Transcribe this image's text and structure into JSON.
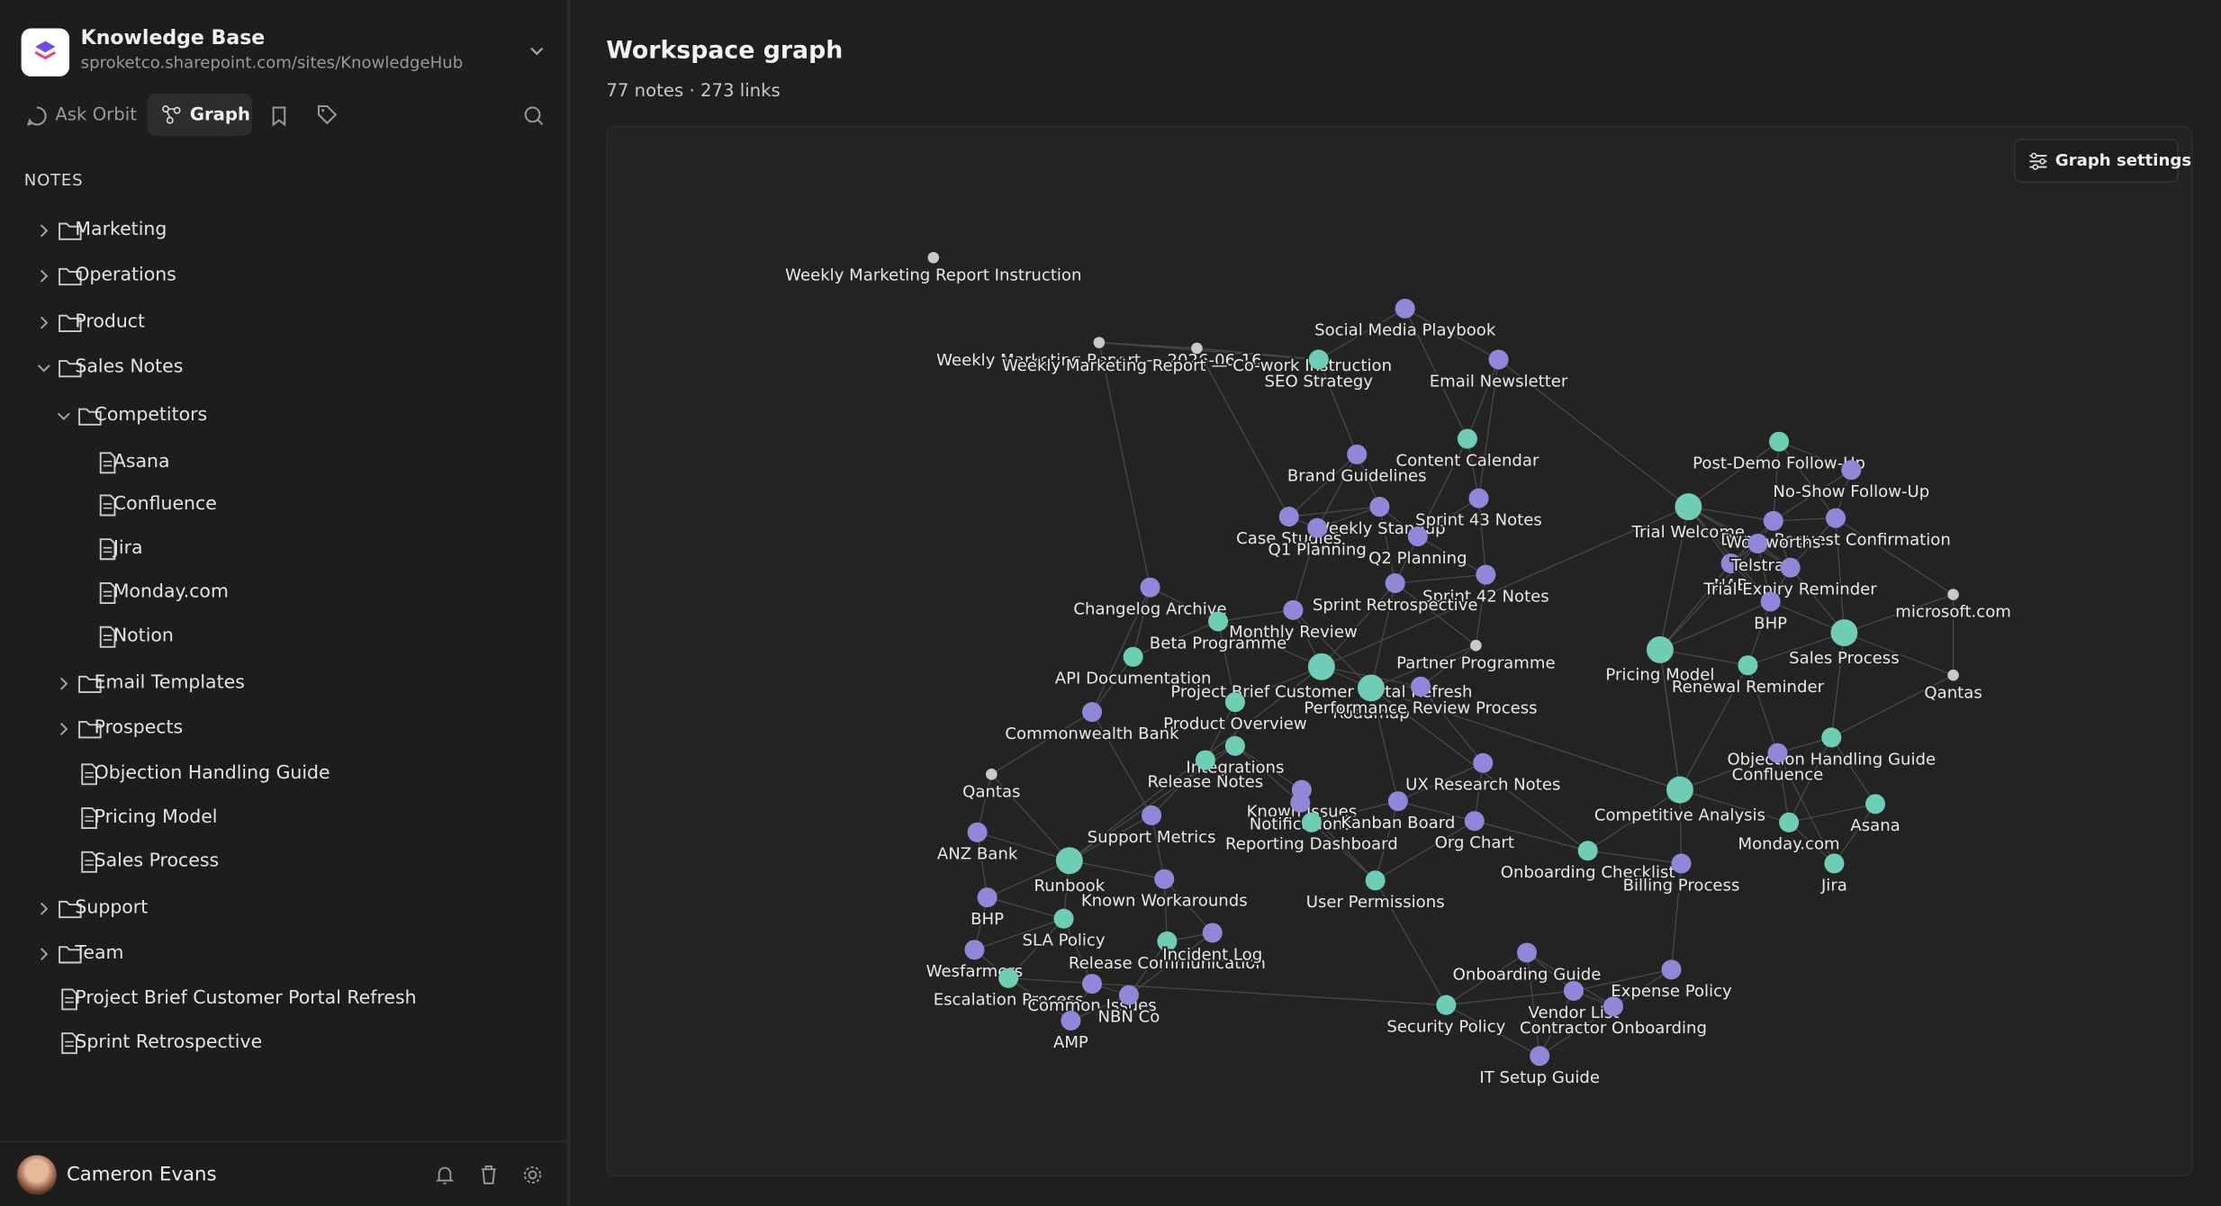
{
  "workspace": {
    "name": "Knowledge Base",
    "url": "sproketco.sharepoint.com/sites/KnowledgeHub"
  },
  "tabs": [
    "Ask Orbit",
    "Graph"
  ],
  "notes_heading": "NOTES",
  "tree": [
    {
      "label": "Marketing",
      "level": 0,
      "kind": "folder",
      "open": false
    },
    {
      "label": "Operations",
      "level": 0,
      "kind": "folder",
      "open": false
    },
    {
      "label": "Product",
      "level": 0,
      "kind": "folder",
      "open": false
    },
    {
      "label": "Sales Notes",
      "level": 0,
      "kind": "folder",
      "open": true
    },
    {
      "label": "Competitors",
      "level": 1,
      "kind": "folder",
      "open": true
    },
    {
      "label": "Asana",
      "level": 2,
      "kind": "file"
    },
    {
      "label": "Confluence",
      "level": 2,
      "kind": "file"
    },
    {
      "label": "Jira",
      "level": 2,
      "kind": "file"
    },
    {
      "label": "Monday.com",
      "level": 2,
      "kind": "file"
    },
    {
      "label": "Notion",
      "level": 2,
      "kind": "file"
    },
    {
      "label": "Email Templates",
      "level": 1,
      "kind": "folder",
      "open": false
    },
    {
      "label": "Prospects",
      "level": 1,
      "kind": "folder",
      "open": false
    },
    {
      "label": "Objection Handling Guide",
      "level": 1,
      "kind": "file"
    },
    {
      "label": "Pricing Model",
      "level": 1,
      "kind": "file"
    },
    {
      "label": "Sales Process",
      "level": 1,
      "kind": "file"
    },
    {
      "label": "Support",
      "level": 0,
      "kind": "folder",
      "open": false
    },
    {
      "label": "Team",
      "level": 0,
      "kind": "folder",
      "open": false
    },
    {
      "label": "Project Brief Customer Portal Refresh",
      "level": 0,
      "kind": "file"
    },
    {
      "label": "Sprint Retrospective",
      "level": 0,
      "kind": "file"
    }
  ],
  "user": "Cameron Evans",
  "header": {
    "title": "Workspace graph",
    "stats": "77 notes · 273 links"
  },
  "graph_settings": "Graph settings",
  "nodes": [
    "Weekly Marketing Report Instruction",
    "Weekly Marketing Report — 2026-06-16",
    "Weekly Marketing Report — Co-work Instruction",
    "Social Media Playbook",
    "SEO Strategy",
    "Email Newsletter",
    "Content Calendar",
    "Brand Guidelines",
    "Weekly Standup",
    "Sprint 43 Notes",
    "Case Studies",
    "Q1 Planning",
    "Q2 Planning",
    "Sprint 42 Notes",
    "Sprint Retrospective",
    "Changelog Archive",
    "Monthly Review",
    "Beta Programme",
    "Partner Programme",
    "API Documentation",
    "Project Brief Customer Portal Refresh",
    "Roadmap",
    "Product Overview",
    "Performance Review Process",
    "Commonwealth Bank",
    "Integrations",
    "Release Notes",
    "Known Issues",
    "UX Research Notes",
    "Notifications",
    "Kanban Board",
    "Org Chart",
    "Reporting Dashboard",
    "Qantas",
    "ANZ Bank",
    "Support Metrics",
    "Runbook",
    "Known Workarounds",
    "BHP",
    "SLA Policy",
    "Release Communication",
    "Incident Log",
    "Wesfarmers",
    "Escalation Process",
    "Common Issues",
    "NBN Co",
    "AMP",
    "User Permissions",
    "Onboarding Checklist",
    "Billing Process",
    "Competitive Analysis",
    "Onboarding Guide",
    "Expense Policy",
    "Security Policy",
    "Vendor List",
    "Contractor Onboarding",
    "IT Setup Guide",
    "Trial Welcome",
    "Post-Demo Follow-Up",
    "No-Show Follow-Up",
    "Demo Request Confirmation",
    "Woolworths",
    "NAB",
    "Telstra",
    "Trial Expiry Reminder",
    "BHP",
    "microsoft.com",
    "Qantas",
    "Sales Process",
    "Pricing Model",
    "Renewal Reminder",
    "Objection Handling Guide",
    "Confluence",
    "Asana",
    "Monday.com",
    "Jira"
  ]
}
